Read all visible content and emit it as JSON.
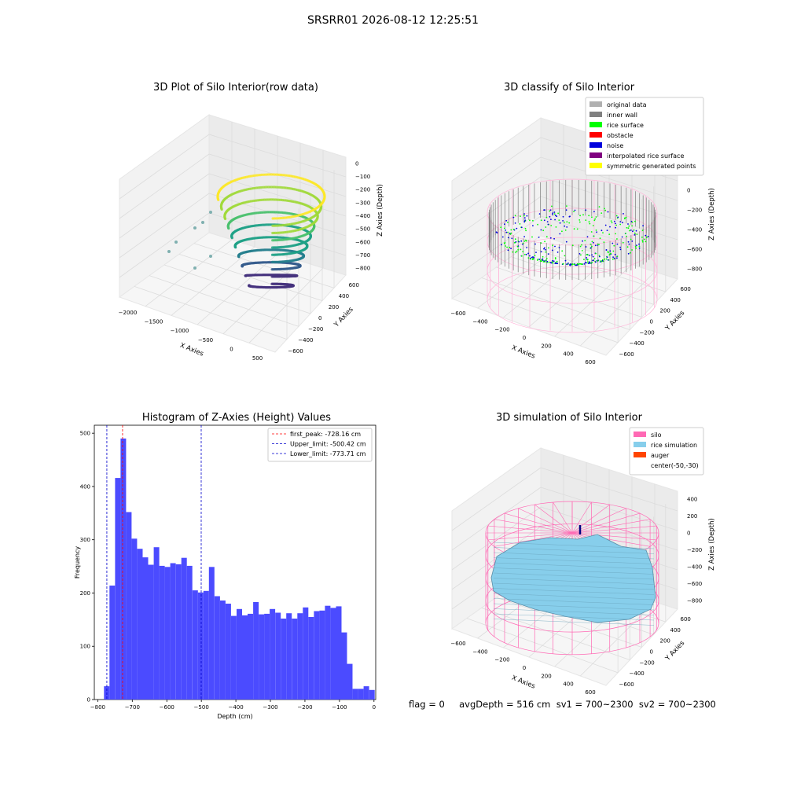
{
  "figure": {
    "title": "SRSRR01 2026-08-12 12:25:51",
    "footer": "flag = 0     avgDepth = 516 cm  sv1 = 700~2300  sv2 = 700~2300"
  },
  "colors": {
    "hist_bar": "#4b4bff",
    "first_peak": "#ff0000",
    "limit_line": "#0000cc",
    "silo": "#ff69b4",
    "rice_sim": "#87ceeb",
    "auger": "#ff4500",
    "original": "#b0b0b0",
    "inner_wall": "#808080",
    "rice_surface": "#00ff00",
    "obstacle": "#ff0000",
    "noise": "#0000dd",
    "interp": "#800080",
    "sym": "#ffff00"
  },
  "chart_data": [
    {
      "type": "scatter",
      "title": "3D Plot of Silo Interior(row data)",
      "xlabel": "X Axies",
      "ylabel": "Y Axies",
      "zlabel": "Z Axies (Depth)",
      "xticks": [
        "−2000",
        "−1500",
        "−1000",
        "−500",
        "0",
        "500"
      ],
      "yticks": [
        "−600",
        "−400",
        "−200",
        "0",
        "200",
        "400",
        "600"
      ],
      "zticks": [
        "0",
        "−100",
        "−200",
        "−300",
        "−400",
        "−500",
        "−600",
        "−700",
        "−800"
      ]
    },
    {
      "type": "scatter",
      "title": "3D classify of Silo Interior",
      "xlabel": "X Axies",
      "ylabel": "Y Axies",
      "zlabel": "Z Axies (Depth)",
      "xticks": [
        "−600",
        "−400",
        "−200",
        "0",
        "200",
        "400",
        "600"
      ],
      "yticks": [
        "−600",
        "−400",
        "−200",
        "0",
        "200",
        "400",
        "600"
      ],
      "zticks": [
        "200",
        "0",
        "−200",
        "−400",
        "−600",
        "−800"
      ],
      "legend": [
        "original data",
        "inner wall",
        "rice surface",
        "obstacle",
        "noise",
        "interpolated rice surface",
        "symmetric generated points"
      ],
      "legend_position": "top-right"
    },
    {
      "type": "bar",
      "title": "Histogram of Z-Axies (Height) Values",
      "xlabel": "Depth (cm)",
      "ylabel": "Frequency",
      "xlim": [
        -810,
        5
      ],
      "ylim": [
        0,
        515
      ],
      "xticks": [
        -800,
        -700,
        -600,
        -500,
        -400,
        -300,
        -200,
        -100,
        0
      ],
      "yticks": [
        0,
        100,
        200,
        300,
        400,
        500
      ],
      "bin_edges": [
        -782,
        -766,
        -750,
        -734,
        -718,
        -702,
        -686,
        -670,
        -654,
        -638,
        -622,
        -606,
        -590,
        -574,
        -558,
        -542,
        -526,
        -510,
        -494,
        -478,
        -462,
        -446,
        -430,
        -414,
        -398,
        -382,
        -366,
        -350,
        -334,
        -318,
        -302,
        -286,
        -270,
        -254,
        -238,
        -222,
        -206,
        -190,
        -174,
        -158,
        -142,
        -126,
        -110,
        -94,
        -78,
        -62,
        -46,
        -30,
        -14
      ],
      "values": [
        25,
        214,
        416,
        490,
        352,
        302,
        283,
        267,
        253,
        286,
        251,
        249,
        256,
        254,
        266,
        251,
        205,
        201,
        204,
        249,
        194,
        186,
        180,
        157,
        170,
        158,
        161,
        183,
        160,
        161,
        170,
        163,
        152,
        162,
        152,
        162,
        173,
        155,
        166,
        167,
        176,
        172,
        175,
        126,
        67,
        20,
        20,
        25,
        18
      ],
      "vlines": [
        {
          "label": "first_peak: -728.16 cm",
          "x": -728.16,
          "color": "#ff0000"
        },
        {
          "label": "Upper_limit: -500.42 cm",
          "x": -500.42,
          "color": "#0000cc"
        },
        {
          "label": "Lower_limit: -773.71 cm",
          "x": -773.71,
          "color": "#0000cc"
        }
      ],
      "legend_position": "top-right"
    },
    {
      "type": "area",
      "title": "3D simulation of Silo Interior",
      "xlabel": "X Axies",
      "ylabel": "Y Axies",
      "zlabel": "Z Axies (Depth)",
      "xticks": [
        "−600",
        "−400",
        "−200",
        "0",
        "200",
        "400",
        "600"
      ],
      "yticks": [
        "−600",
        "−400",
        "−200",
        "0",
        "200",
        "400",
        "600"
      ],
      "zticks": [
        "400",
        "200",
        "0",
        "−200",
        "−400",
        "−600",
        "−800"
      ],
      "legend": [
        "silo",
        "rice simulation",
        "auger",
        "center(-50,-30)"
      ],
      "legend_position": "top-right"
    }
  ]
}
